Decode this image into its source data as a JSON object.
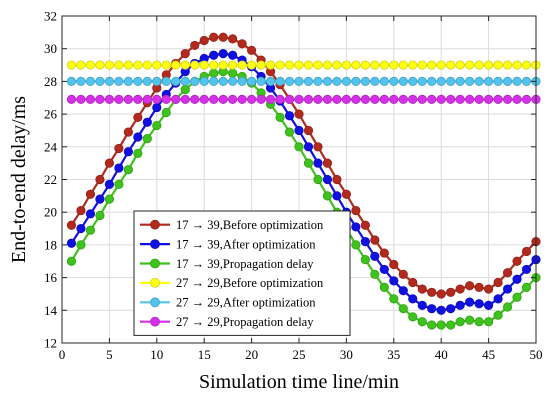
{
  "chart_data": {
    "type": "line",
    "xlabel": "Simulation time line/min",
    "ylabel": "End-to-end delay/ms",
    "xlim": [
      0,
      50
    ],
    "ylim": [
      12,
      32
    ],
    "xticks": [
      0,
      5,
      10,
      15,
      20,
      25,
      30,
      35,
      40,
      45,
      50
    ],
    "yticks": [
      12,
      14,
      16,
      18,
      20,
      22,
      24,
      26,
      28,
      30,
      32
    ],
    "grid": true,
    "legend_position": "lower-left",
    "x": [
      1,
      2,
      3,
      4,
      5,
      6,
      7,
      8,
      9,
      10,
      11,
      12,
      13,
      14,
      15,
      16,
      17,
      18,
      19,
      20,
      21,
      22,
      23,
      24,
      25,
      26,
      27,
      28,
      29,
      30,
      31,
      32,
      33,
      34,
      35,
      36,
      37,
      38,
      39,
      40,
      41,
      42,
      43,
      44,
      45,
      46,
      47,
      48,
      49,
      50
    ],
    "series": [
      {
        "name": "17 → 39,Before optimization",
        "color": "#b22a1e",
        "values": [
          19.2,
          20.1,
          21.1,
          22.0,
          23.0,
          23.9,
          24.9,
          25.8,
          26.7,
          27.6,
          28.4,
          29.1,
          29.7,
          30.2,
          30.5,
          30.7,
          30.7,
          30.6,
          30.3,
          29.9,
          29.3,
          28.6,
          27.8,
          26.9,
          26.0,
          25.0,
          24.0,
          23.0,
          22.0,
          21.1,
          20.1,
          19.2,
          18.3,
          17.5,
          16.8,
          16.2,
          15.7,
          15.3,
          15.1,
          15.0,
          15.1,
          15.3,
          15.5,
          15.4,
          15.3,
          15.7,
          16.3,
          17.0,
          17.6,
          18.2
        ]
      },
      {
        "name": "17 → 39,After optimization",
        "color": "#1010e0",
        "values": [
          18.1,
          19.0,
          19.9,
          20.8,
          21.7,
          22.7,
          23.7,
          24.6,
          25.5,
          26.4,
          27.2,
          27.9,
          28.6,
          29.1,
          29.4,
          29.6,
          29.7,
          29.6,
          29.3,
          28.9,
          28.3,
          27.6,
          26.8,
          25.9,
          25.0,
          24.0,
          23.0,
          22.0,
          21.0,
          20.0,
          19.1,
          18.2,
          17.3,
          16.5,
          15.8,
          15.2,
          14.7,
          14.3,
          14.1,
          14.0,
          14.1,
          14.3,
          14.5,
          14.4,
          14.3,
          14.7,
          15.3,
          15.9,
          16.5,
          17.1
        ]
      },
      {
        "name": "17 → 39,Propagation delay",
        "color": "#3ec21c",
        "values": [
          17.0,
          18.0,
          18.9,
          19.8,
          20.8,
          21.7,
          22.6,
          23.6,
          24.5,
          25.3,
          26.1,
          26.9,
          27.5,
          28.0,
          28.3,
          28.5,
          28.6,
          28.5,
          28.3,
          27.9,
          27.3,
          26.6,
          25.8,
          24.9,
          24.0,
          23.0,
          22.0,
          21.0,
          20.0,
          19.0,
          18.0,
          17.1,
          16.2,
          15.4,
          14.7,
          14.1,
          13.6,
          13.3,
          13.1,
          13.1,
          13.1,
          13.3,
          13.4,
          13.3,
          13.3,
          13.7,
          14.2,
          14.8,
          15.4,
          16.0
        ]
      },
      {
        "name": "27 → 29,Before optimization",
        "color": "#ffff14",
        "values": [
          29.0,
          29.0,
          29.0,
          29.0,
          29.0,
          29.0,
          29.0,
          29.0,
          29.0,
          29.0,
          29.0,
          29.0,
          29.0,
          29.0,
          29.0,
          29.0,
          29.0,
          29.0,
          29.0,
          29.0,
          29.0,
          29.0,
          29.0,
          29.0,
          29.0,
          29.0,
          29.0,
          29.0,
          29.0,
          29.0,
          29.0,
          29.0,
          29.0,
          29.0,
          29.0,
          29.0,
          29.0,
          29.0,
          29.0,
          29.0,
          29.0,
          29.0,
          29.0,
          29.0,
          29.0,
          29.0,
          29.0,
          29.0,
          29.0,
          29.0
        ]
      },
      {
        "name": "27 → 29,After optimization",
        "color": "#52c3ec",
        "values": [
          28.0,
          28.0,
          28.0,
          28.0,
          28.0,
          28.0,
          28.0,
          28.0,
          28.0,
          28.0,
          28.0,
          28.0,
          28.0,
          28.0,
          28.0,
          28.0,
          28.0,
          28.0,
          28.0,
          28.0,
          28.0,
          28.0,
          28.0,
          28.0,
          28.0,
          28.0,
          28.0,
          28.0,
          28.0,
          28.0,
          28.0,
          28.0,
          28.0,
          28.0,
          28.0,
          28.0,
          28.0,
          28.0,
          28.0,
          28.0,
          28.0,
          28.0,
          28.0,
          28.0,
          28.0,
          28.0,
          28.0,
          28.0,
          28.0,
          28.0
        ]
      },
      {
        "name": "27 → 29,Propagation delay",
        "color": "#d52fe8",
        "values": [
          26.9,
          26.9,
          26.9,
          26.9,
          26.9,
          26.9,
          26.9,
          26.9,
          26.9,
          26.9,
          26.9,
          26.9,
          26.9,
          26.9,
          26.9,
          26.9,
          26.9,
          26.9,
          26.9,
          26.9,
          26.9,
          26.9,
          26.9,
          26.9,
          26.9,
          26.9,
          26.9,
          26.9,
          26.9,
          26.9,
          26.9,
          26.9,
          26.9,
          26.9,
          26.9,
          26.9,
          26.9,
          26.9,
          26.9,
          26.9,
          26.9,
          26.9,
          26.9,
          26.9,
          26.9,
          26.9,
          26.9,
          26.9,
          26.9,
          26.9
        ]
      }
    ]
  }
}
